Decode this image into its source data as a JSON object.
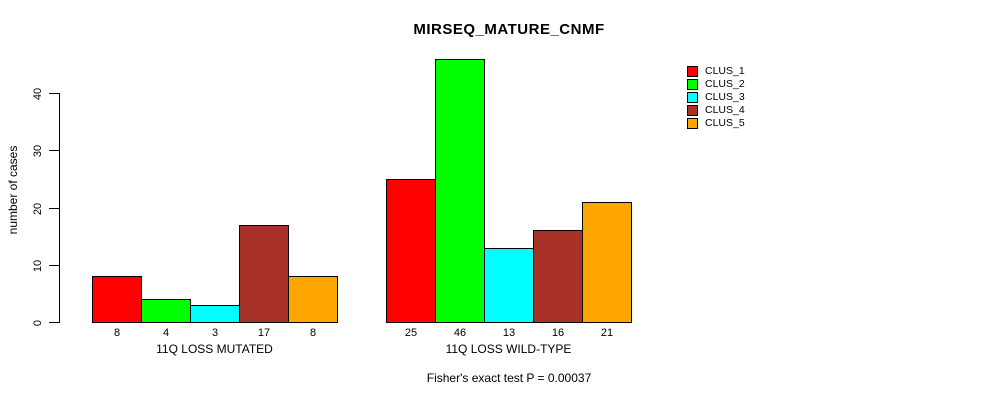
{
  "title": "MIRSEQ_MATURE_CNMF",
  "y_axis": {
    "label": "number of cases",
    "tick_labels": [
      "0",
      "10",
      "20",
      "30",
      "40"
    ]
  },
  "footer_note": "Fisher's exact test P = 0.00037",
  "legend": {
    "items": [
      {
        "label": "CLUS_1",
        "color": "#FF0000"
      },
      {
        "label": "CLUS_2",
        "color": "#00FF00"
      },
      {
        "label": "CLUS_3",
        "color": "#00FFFF"
      },
      {
        "label": "CLUS_4",
        "color": "#A93228"
      },
      {
        "label": "CLUS_5",
        "color": "#FFA500"
      }
    ]
  },
  "chart_data": {
    "type": "bar",
    "title": "MIRSEQ_MATURE_CNMF",
    "xlabel": "",
    "ylabel": "number of cases",
    "ylim": [
      0,
      46
    ],
    "yticks": [
      0,
      10,
      20,
      30,
      40
    ],
    "grid": false,
    "legend_position": "top-right",
    "categories": [
      "11Q LOSS MUTATED",
      "11Q LOSS WILD-TYPE"
    ],
    "series": [
      {
        "name": "CLUS_1",
        "color": "#FF0000",
        "values": [
          8,
          25
        ]
      },
      {
        "name": "CLUS_2",
        "color": "#00FF00",
        "values": [
          4,
          46
        ]
      },
      {
        "name": "CLUS_3",
        "color": "#00FFFF",
        "values": [
          3,
          13
        ]
      },
      {
        "name": "CLUS_4",
        "color": "#A93228",
        "values": [
          17,
          16
        ]
      },
      {
        "name": "CLUS_5",
        "color": "#FFA500",
        "values": [
          8,
          21
        ]
      }
    ],
    "bar_value_labels_shown": true,
    "annotation": "Fisher's exact test P = 0.00037"
  }
}
